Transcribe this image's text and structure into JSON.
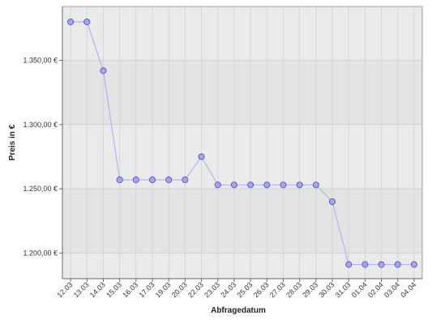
{
  "chart_data": {
    "type": "line",
    "xlabel": "Abfragedatum",
    "ylabel": "Preis in €",
    "categories": [
      "12.03",
      "13.03",
      "14.03",
      "15.03",
      "16.03",
      "17.03",
      "19.03",
      "20.03",
      "22.03",
      "23.03",
      "24.03",
      "25.03",
      "26.03",
      "27.03",
      "28.03",
      "29.03",
      "30.03",
      "31.03",
      "01.04",
      "02.04",
      "03.04",
      "04.04"
    ],
    "series": [
      {
        "values": [
          1380,
          1380,
          1342,
          1257,
          1257,
          1257,
          1257,
          1257,
          1275,
          1253,
          1253,
          1253,
          1253,
          1253,
          1253,
          1253,
          1240,
          1191,
          1191,
          1191,
          1191,
          1191
        ]
      }
    ],
    "ylim": [
      1180,
      1392
    ],
    "yticks": [
      1200,
      1250,
      1300,
      1350
    ],
    "ytick_labels": [
      "1.200,00 €",
      "1.250,00 €",
      "1.300,00 €",
      "1.350,00 €"
    ],
    "grid": true,
    "colors": {
      "line": "#b3b3ee",
      "marker_fill": "#a5a5ee",
      "marker_stroke": "#5555bb",
      "band_light": "#eaeaea",
      "band_dark": "#e3e3e3",
      "plot_border": "#888888"
    }
  }
}
